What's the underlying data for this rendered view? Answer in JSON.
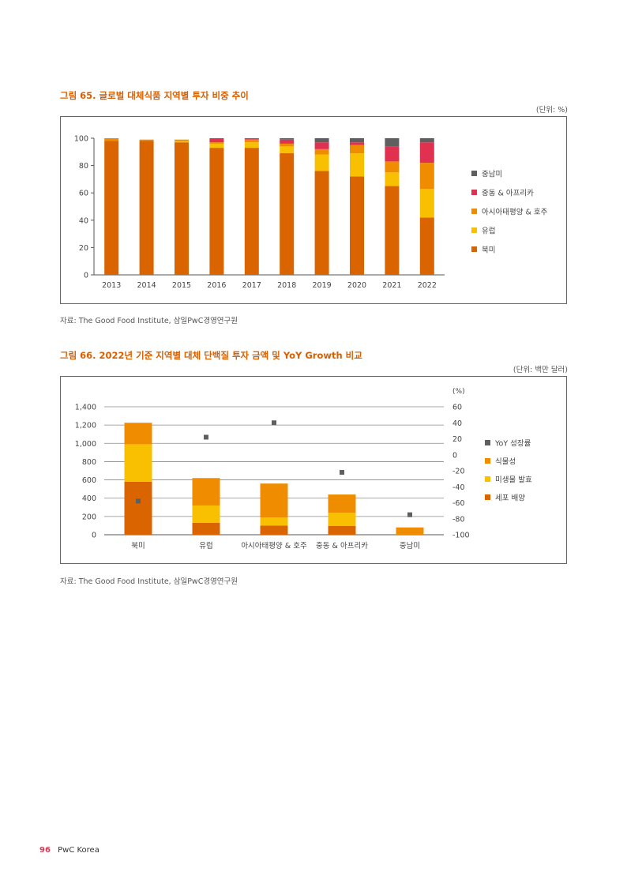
{
  "figures": [
    {
      "title": "그림 65. 글로벌 대체식품 지역별 투자 비중 추이",
      "unit": "(단위: %)",
      "source": "자료: The Good Food Institute, 삼일PwC경영연구원"
    },
    {
      "title": "그림 66. 2022년 기준 지역별 대체 단백질 투자 금액 및 YoY Growth 비교",
      "unit": "(단위: 백만 달러)",
      "source": "자료: The Good Food Institute, 삼일PwC경영연구원"
    }
  ],
  "chart_data": [
    {
      "type": "bar",
      "stacked": true,
      "categories": [
        "2013",
        "2014",
        "2015",
        "2016",
        "2017",
        "2018",
        "2019",
        "2020",
        "2021",
        "2022"
      ],
      "ylim": [
        0,
        100
      ],
      "yticks": [
        "0",
        "20",
        "40",
        "60",
        "80",
        "100"
      ],
      "grid": false,
      "legend_position": "right",
      "series": [
        {
          "name": "북미",
          "color": "#d96400",
          "values": [
            98,
            98,
            97,
            93,
            93,
            89,
            76,
            72,
            65,
            42
          ]
        },
        {
          "name": "유럽",
          "color": "#f8c000",
          "values": [
            0,
            0,
            1,
            3,
            4,
            5,
            12,
            17,
            10,
            21
          ]
        },
        {
          "name": "아시아태평양 & 호주",
          "color": "#ef8c00",
          "values": [
            2,
            1,
            1,
            1,
            2,
            2,
            4,
            6,
            8,
            19
          ]
        },
        {
          "name": "중동 & 아프리카",
          "color": "#e03150",
          "values": [
            0,
            0,
            0,
            3,
            1,
            3,
            5,
            2,
            11,
            15
          ]
        },
        {
          "name": "중남미",
          "color": "#5f5f5f",
          "values": [
            0,
            0,
            0,
            0,
            0,
            1,
            3,
            3,
            6,
            3
          ]
        }
      ]
    },
    {
      "type": "bar",
      "stacked": true,
      "categories": [
        "북미",
        "유럽",
        "아시아태평양 & 호주",
        "중동 & 아프리카",
        "중남미"
      ],
      "ylim": [
        0,
        1400
      ],
      "yticks": [
        "0",
        "200",
        "400",
        "600",
        "800",
        "1,000",
        "1,200",
        "1,400"
      ],
      "y2label": "(%)",
      "y2lim": [
        -100,
        60
      ],
      "y2ticks": [
        "-100",
        "-80",
        "-60",
        "-40",
        "-20",
        "0",
        "20",
        "40",
        "60"
      ],
      "grid": true,
      "legend_position": "right",
      "series": [
        {
          "name": "세포 배양",
          "color": "#d96400",
          "values": [
            580,
            130,
            100,
            95,
            0
          ]
        },
        {
          "name": "미생물 발효",
          "color": "#f8c000",
          "values": [
            410,
            190,
            90,
            145,
            0
          ]
        },
        {
          "name": "식물성",
          "color": "#ef8c00",
          "values": [
            235,
            300,
            370,
            200,
            80
          ]
        },
        {
          "name": "YoY 성장률",
          "color": "#5f5f5f",
          "marker": "square",
          "axis": "right",
          "values": [
            -58,
            22,
            40,
            -22,
            -75
          ]
        }
      ]
    }
  ],
  "footer": {
    "page": "96",
    "brand": "PwC Korea"
  }
}
